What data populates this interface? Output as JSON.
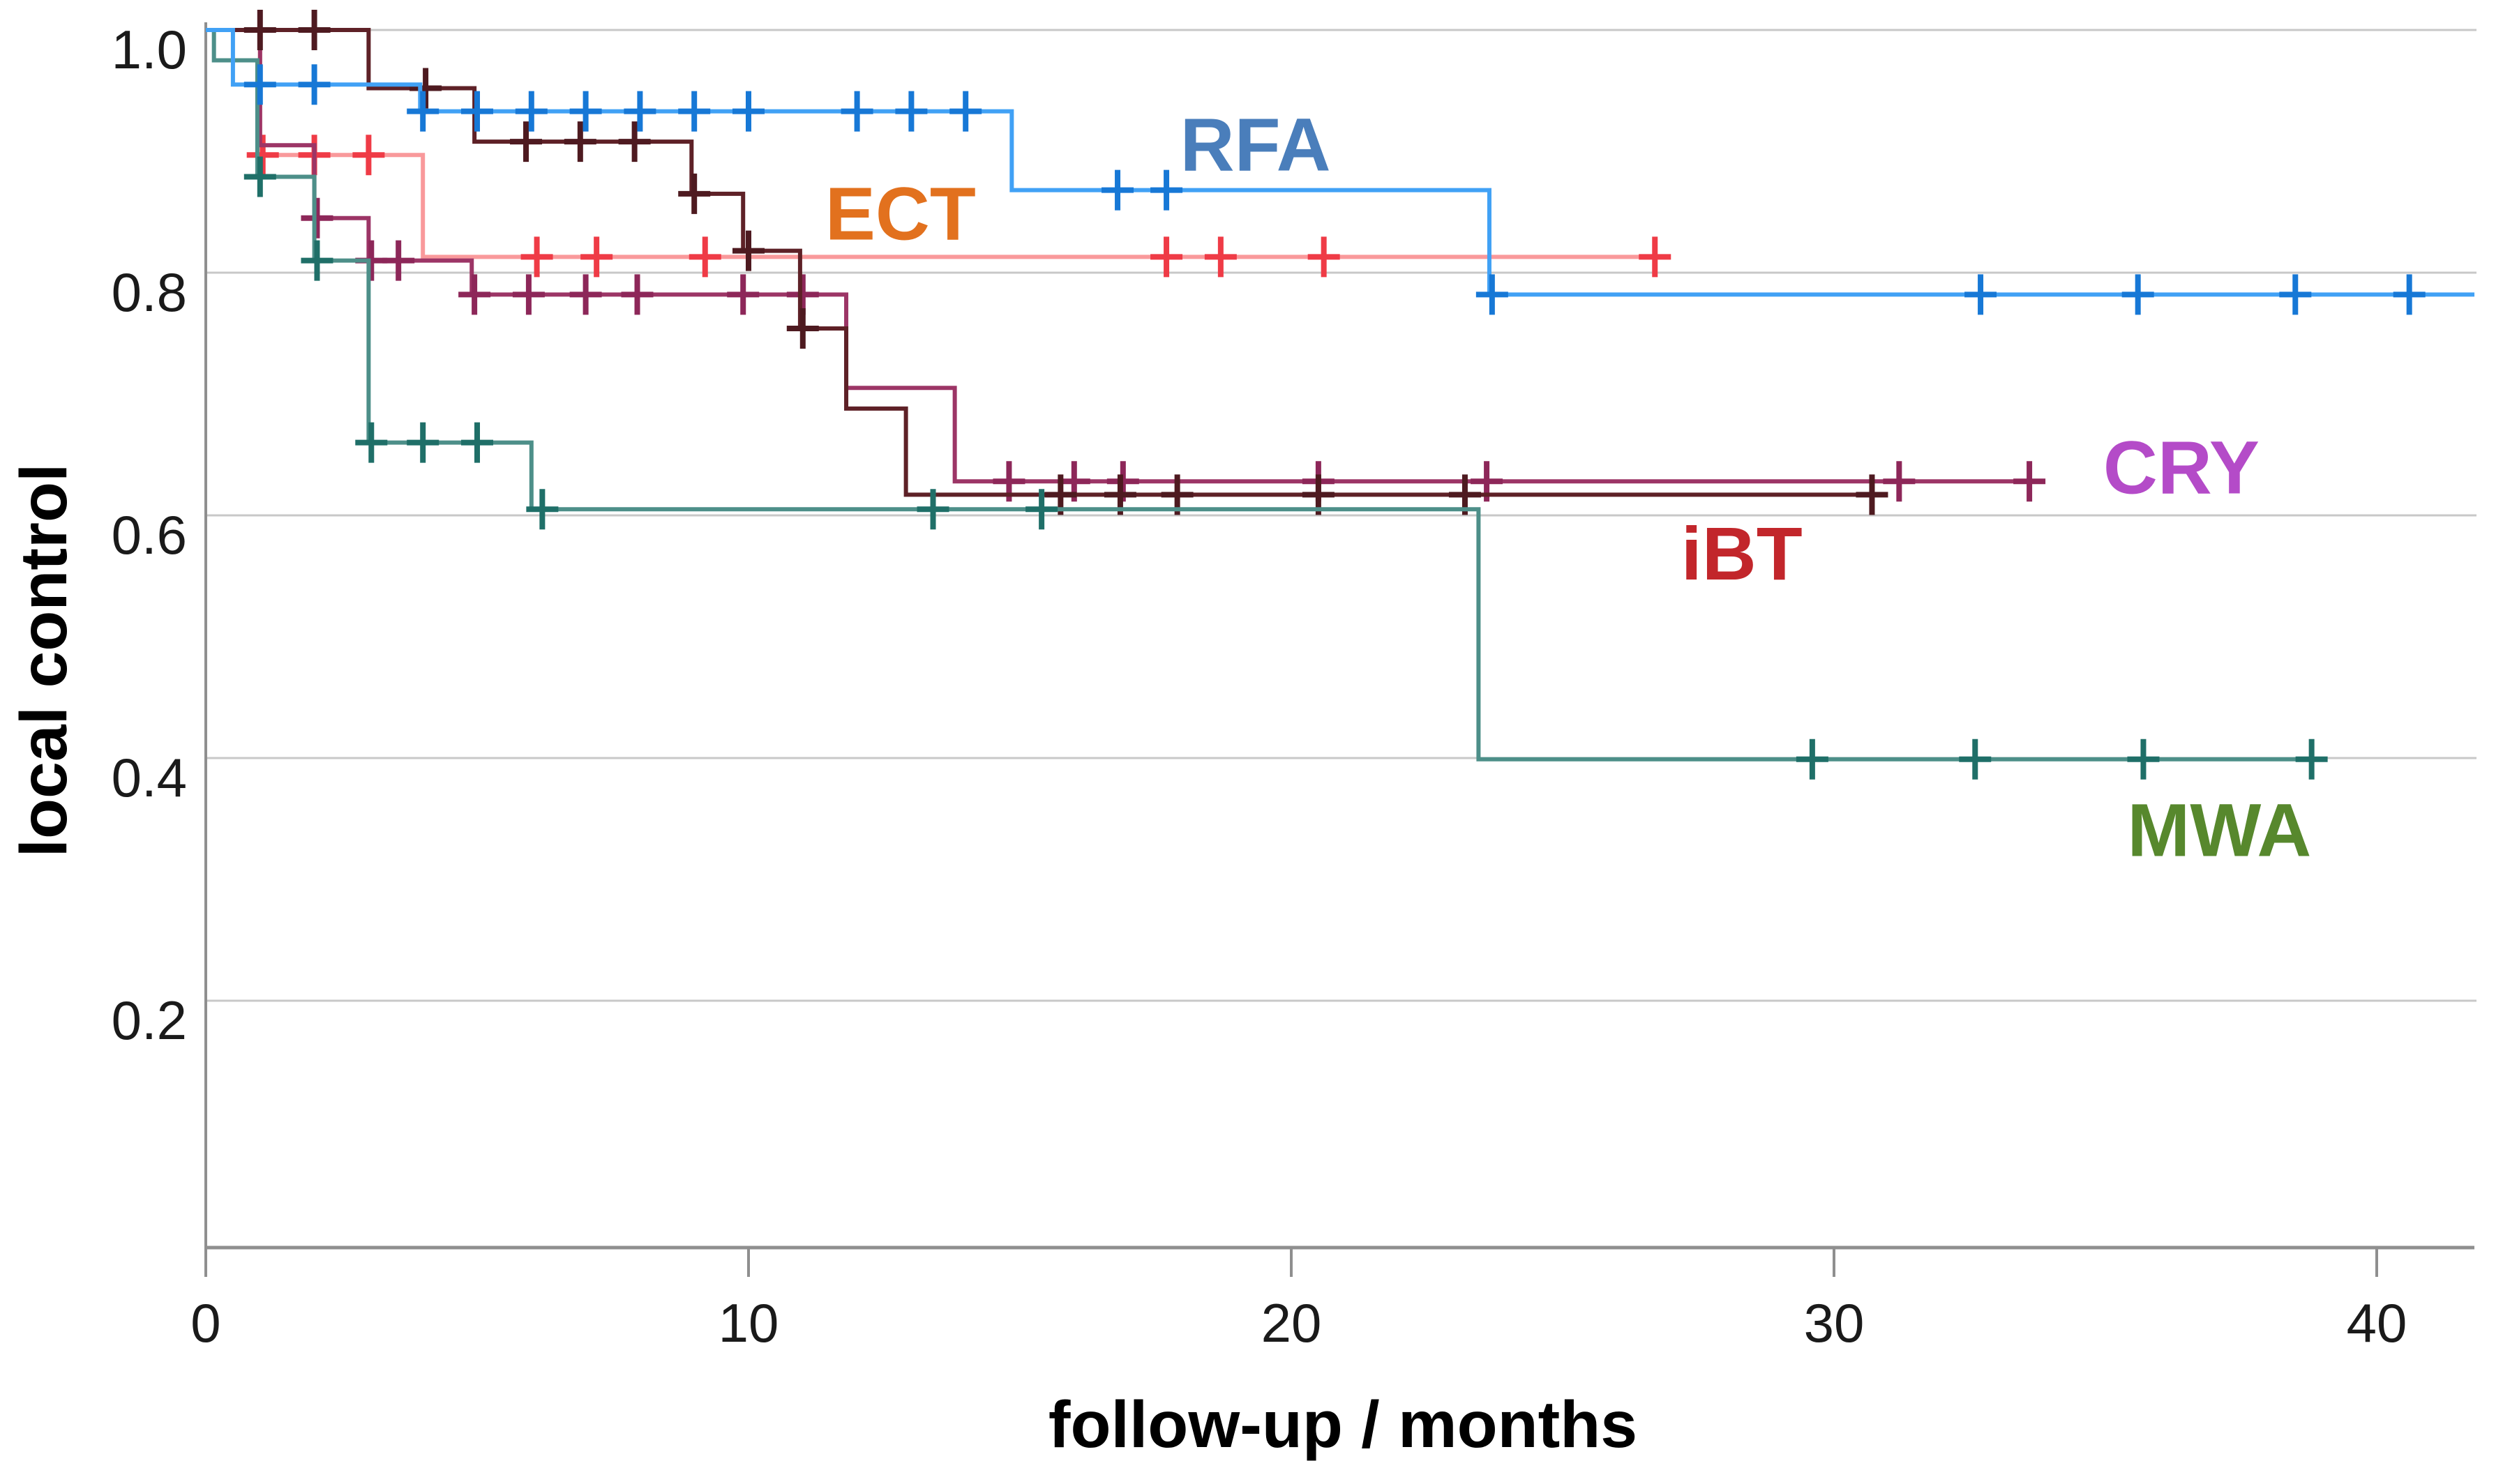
{
  "chart_data": {
    "type": "line",
    "subtype": "kaplan-meier-step-curves",
    "title": "",
    "xlabel": "follow-up / months",
    "ylabel": "local control",
    "xlim": [
      0,
      42
    ],
    "ylim": [
      0,
      1.04
    ],
    "xticks": [
      {
        "label": "0",
        "value": 0
      },
      {
        "label": "10",
        "value": 10
      },
      {
        "label": "20",
        "value": 20
      },
      {
        "label": "30",
        "value": 30
      },
      {
        "label": "40",
        "value": 40
      }
    ],
    "yticks": [
      {
        "label": "1.0",
        "value": 1.0
      },
      {
        "label": "0.8",
        "value": 0.8
      },
      {
        "label": "0.6",
        "value": 0.6
      },
      {
        "label": "0.4",
        "value": 0.4
      },
      {
        "label": "0.2",
        "value": 0.2
      }
    ],
    "grid": "horizontal",
    "legend_position": "inline-labels",
    "series": [
      {
        "name": "ECT",
        "line_color": "#f9999b",
        "censor_color": "#ef3b46",
        "label_color": "#e2711e",
        "label_anchor": {
          "t": 12.8,
          "v": 0.849
        },
        "start_value": 1.0,
        "drops": [
          [
            1.0,
            0.897
          ],
          [
            4.0,
            0.813
          ]
        ],
        "end_time": 26.7,
        "censor_times": [
          1.05,
          2.0,
          3.0,
          6.1,
          7.2,
          9.2,
          17.7,
          18.7,
          20.6,
          26.7
        ]
      },
      {
        "name": "CRY",
        "line_color": "#9c3566",
        "censor_color": "#8d2759",
        "label_color": "#b44bc8",
        "label_anchor": {
          "t": 36.4,
          "v": 0.64
        },
        "start_value": 1.0,
        "drops": [
          [
            1.0,
            0.905
          ],
          [
            2.0,
            0.845
          ],
          [
            3.0,
            0.81
          ],
          [
            4.9,
            0.782
          ],
          [
            11.8,
            0.705
          ],
          [
            13.8,
            0.628
          ]
        ],
        "end_time": 33.6,
        "censor_times": [
          2.05,
          3.05,
          3.55,
          4.95,
          5.95,
          7.0,
          7.95,
          9.9,
          11.0,
          14.8,
          16.0,
          16.9,
          20.5,
          23.6,
          31.2,
          33.6
        ]
      },
      {
        "name": "iBT",
        "line_color": "#5e2127",
        "censor_color": "#4e1a20",
        "label_color": "#c2262b",
        "label_anchor": {
          "t": 28.3,
          "v": 0.569
        },
        "start_value": 1.0,
        "drops": [
          [
            3.0,
            0.952
          ],
          [
            4.95,
            0.908
          ],
          [
            8.95,
            0.865
          ],
          [
            9.9,
            0.818
          ],
          [
            10.95,
            0.754
          ],
          [
            11.8,
            0.688
          ],
          [
            12.9,
            0.617
          ]
        ],
        "end_time": 30.7,
        "censor_times": [
          1.0,
          2.0,
          4.05,
          5.9,
          6.9,
          7.9,
          9.0,
          10.0,
          11.0,
          15.75,
          16.85,
          17.9,
          20.5,
          23.2,
          30.7
        ]
      },
      {
        "name": "MWA",
        "line_color": "#4d8f89",
        "censor_color": "#1f6f68",
        "label_color": "#57882d",
        "label_anchor": {
          "t": 37.1,
          "v": 0.341
        },
        "start_value": 1.0,
        "drops": [
          [
            0.15,
            0.975
          ],
          [
            0.95,
            0.879
          ],
          [
            2.0,
            0.81
          ],
          [
            3.0,
            0.66
          ],
          [
            6.0,
            0.605
          ],
          [
            23.45,
            0.399
          ]
        ],
        "end_time": 38.9,
        "censor_times": [
          1.0,
          2.05,
          3.05,
          4.0,
          5.0,
          6.2,
          13.4,
          15.4,
          29.6,
          32.6,
          35.7,
          38.8
        ]
      },
      {
        "name": "RFA",
        "line_color": "#41a1f5",
        "censor_color": "#1778d6",
        "label_color": "#4a7ebb",
        "label_anchor": {
          "t": 19.34,
          "v": 0.906
        },
        "start_value": 1.0,
        "drops": [
          [
            0.5,
            0.955
          ],
          [
            3.95,
            0.933
          ],
          [
            14.85,
            0.868
          ],
          [
            23.65,
            0.782
          ]
        ],
        "end_time": 41.8,
        "censor_times": [
          1.0,
          2.0,
          4.0,
          5.0,
          6.0,
          7.0,
          8.0,
          9.0,
          10.0,
          12.0,
          13.0,
          14.0,
          16.8,
          17.7,
          23.7,
          32.7,
          35.6,
          38.5,
          40.6
        ]
      }
    ]
  },
  "style": {
    "background": "#ffffff",
    "grid_color": "#c8c8c8",
    "axis_color": "#8f8f8f",
    "tick_label_color": "#1a1a1a",
    "axis_title_color": "#000000"
  }
}
